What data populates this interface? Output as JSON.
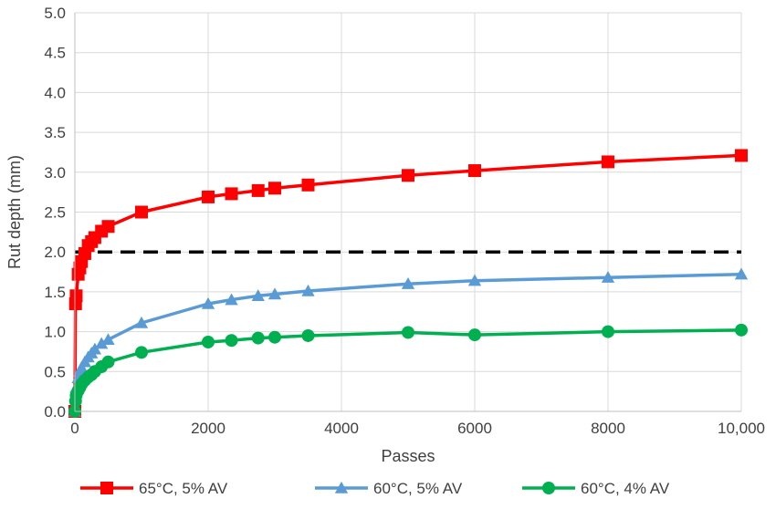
{
  "chart_data": {
    "type": "line",
    "title": "",
    "xlabel": "Passes",
    "ylabel": "Rut depth (mm)",
    "xlim": [
      0,
      10000
    ],
    "ylim": [
      0,
      5
    ],
    "x_ticks": [
      0,
      2000,
      4000,
      6000,
      8000,
      10000
    ],
    "x_tick_labels": [
      "0",
      "2000",
      "4000",
      "6000",
      "8000",
      "10,000"
    ],
    "y_ticks": [
      0,
      0.5,
      1,
      1.5,
      2,
      2.5,
      3,
      3.5,
      4,
      4.5,
      5
    ],
    "y_tick_labels": [
      "0.0",
      "0.5",
      "1.0",
      "1.5",
      "2.0",
      "2.5",
      "3.0",
      "3.5",
      "4.0",
      "4.5",
      "5.0"
    ],
    "grid": true,
    "legend_position": "bottom",
    "reference_line": {
      "y": 2.0,
      "style": "dashed",
      "color": "#000000"
    },
    "series": [
      {
        "name": "65°C, 5% AV",
        "color": "#ff0000",
        "marker": "square",
        "x": [
          0,
          10,
          20,
          50,
          75,
          100,
          150,
          200,
          250,
          300,
          400,
          500,
          1000,
          2000,
          2350,
          2750,
          3000,
          3500,
          5000,
          6000,
          8000,
          10000
        ],
        "y": [
          0,
          1.35,
          1.45,
          1.72,
          1.8,
          1.88,
          1.98,
          2.08,
          2.13,
          2.18,
          2.26,
          2.32,
          2.5,
          2.69,
          2.73,
          2.77,
          2.8,
          2.84,
          2.96,
          3.02,
          3.13,
          3.21
        ]
      },
      {
        "name": "60°C, 5% AV",
        "color": "#5b9bd5",
        "marker": "triangle",
        "x": [
          0,
          10,
          20,
          50,
          75,
          100,
          150,
          200,
          250,
          300,
          400,
          500,
          1000,
          2000,
          2350,
          2750,
          3000,
          3500,
          5000,
          6000,
          8000,
          10000
        ],
        "y": [
          0,
          0.2,
          0.3,
          0.42,
          0.5,
          0.55,
          0.62,
          0.68,
          0.73,
          0.78,
          0.85,
          0.9,
          1.11,
          1.35,
          1.4,
          1.45,
          1.47,
          1.51,
          1.6,
          1.64,
          1.68,
          1.72
        ]
      },
      {
        "name": "60°C, 4% AV",
        "color": "#00b050",
        "marker": "circle",
        "x": [
          0,
          10,
          20,
          50,
          75,
          100,
          150,
          200,
          250,
          300,
          400,
          500,
          1000,
          2000,
          2350,
          2750,
          3000,
          3500,
          5000,
          6000,
          8000,
          10000
        ],
        "y": [
          0,
          0.13,
          0.2,
          0.26,
          0.3,
          0.34,
          0.39,
          0.43,
          0.46,
          0.5,
          0.56,
          0.62,
          0.74,
          0.87,
          0.89,
          0.92,
          0.93,
          0.95,
          0.99,
          0.96,
          1.0,
          1.02
        ]
      }
    ]
  }
}
